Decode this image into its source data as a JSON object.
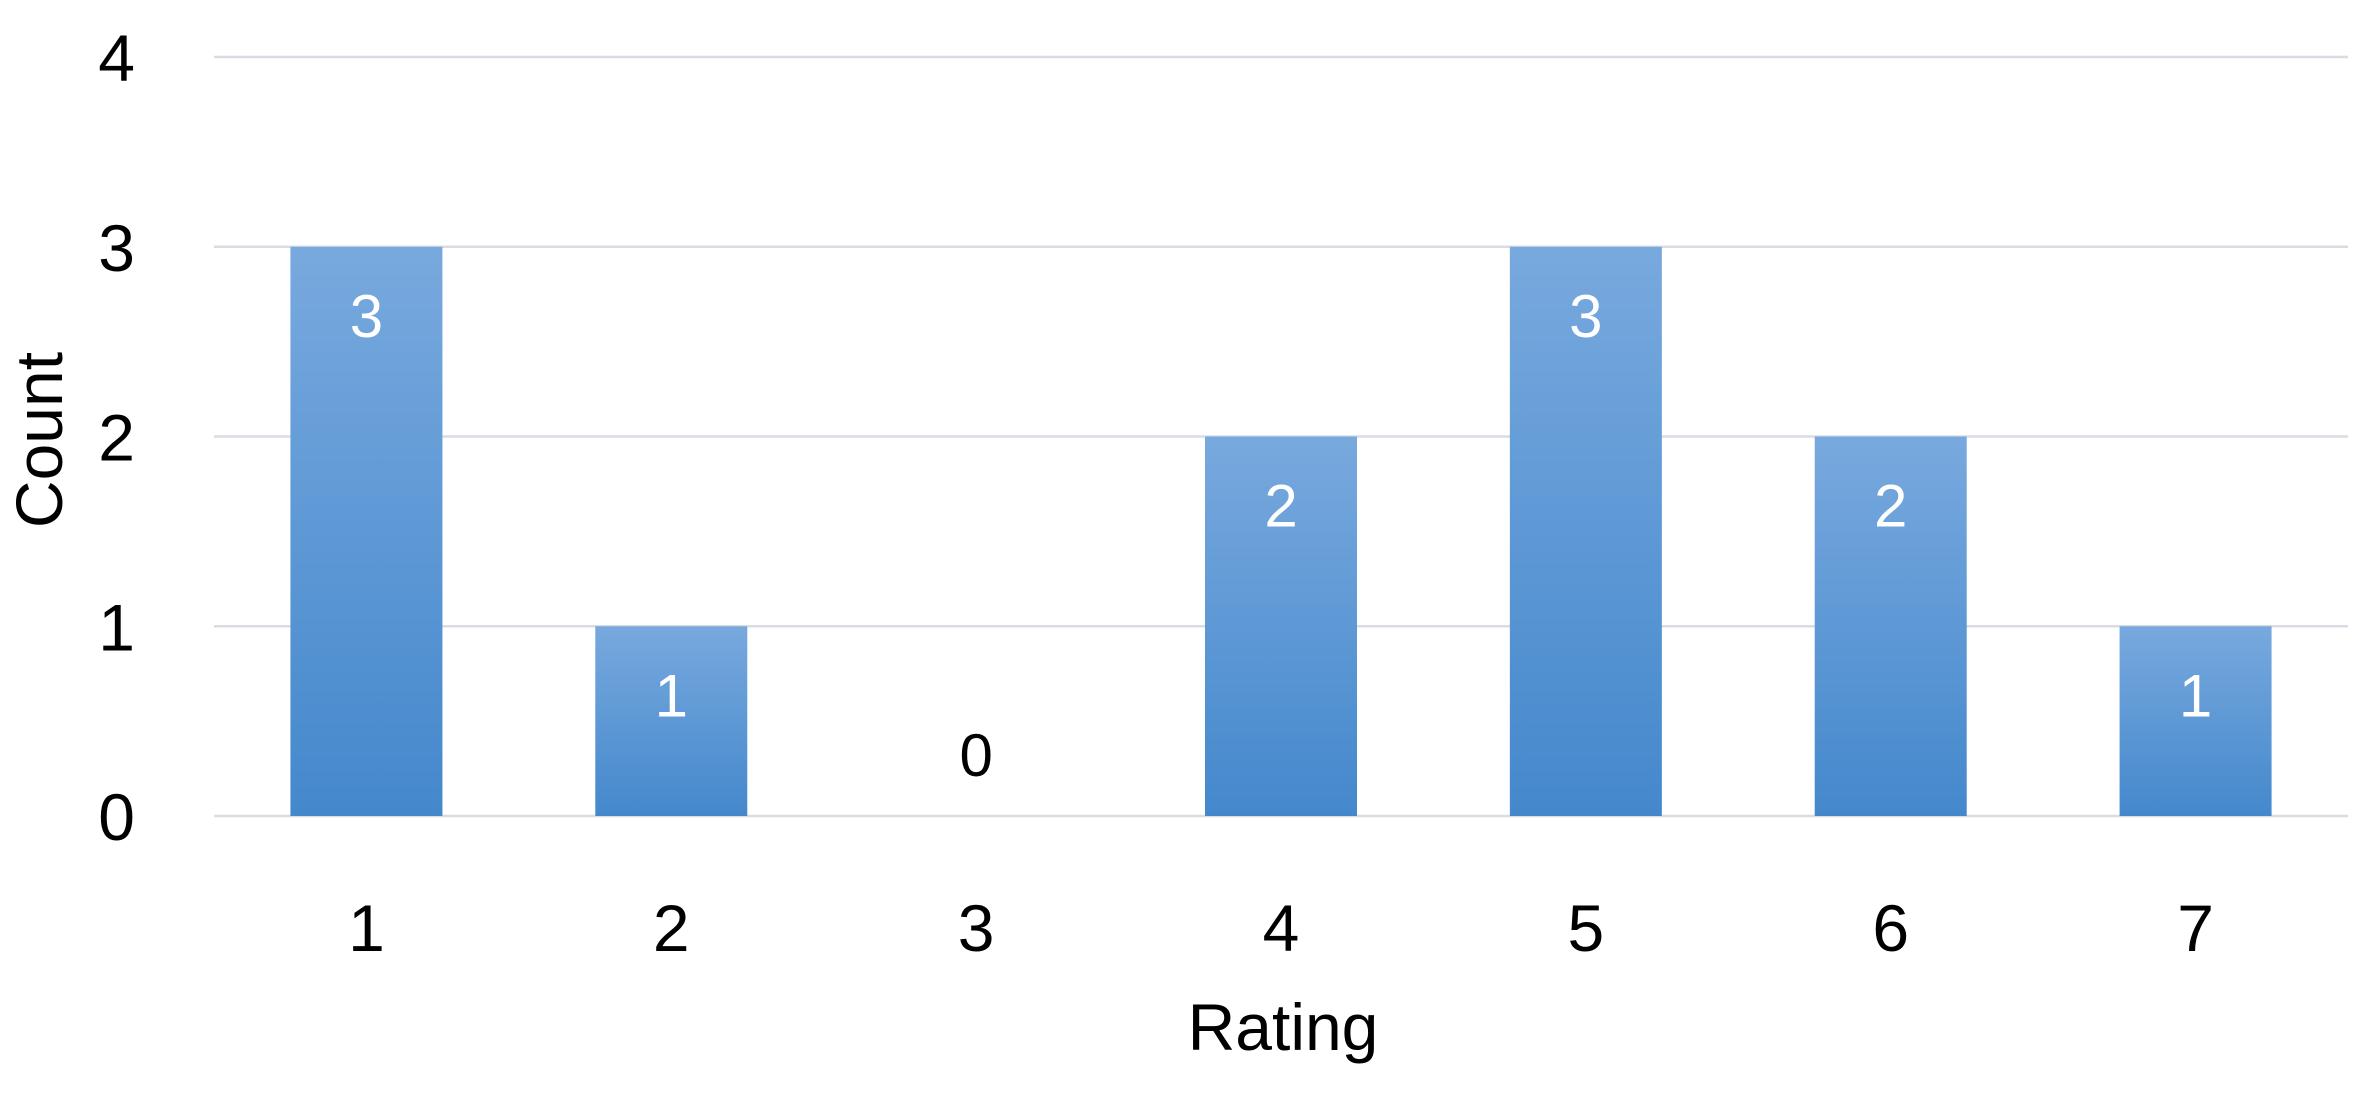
{
  "chart_data": {
    "type": "bar",
    "title": "",
    "xlabel": "Rating",
    "ylabel": "Count",
    "categories": [
      "1",
      "2",
      "3",
      "4",
      "5",
      "6",
      "7"
    ],
    "values": [
      3,
      1,
      0,
      2,
      3,
      2,
      1
    ],
    "ylim": [
      0,
      4
    ],
    "yticks": [
      "0",
      "1",
      "2",
      "3",
      "4"
    ],
    "grid": true,
    "data_labels": true,
    "colors": {
      "bar_top": "#78a9de",
      "bar_bottom": "#4488cc",
      "grid": "#d9dde3",
      "label_on_bar": "#ffffff",
      "label_outside": "#000000"
    }
  }
}
